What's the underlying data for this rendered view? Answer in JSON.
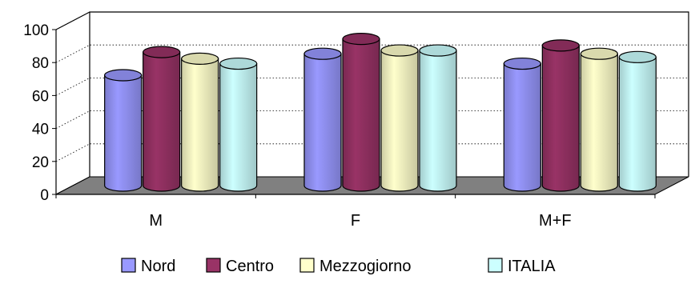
{
  "chart_data": {
    "type": "bar",
    "title": "",
    "xlabel": "",
    "ylabel": "",
    "categories": [
      "M",
      "F",
      "M+F"
    ],
    "series": [
      {
        "name": "Nord",
        "values": [
          67,
          80,
          74
        ]
      },
      {
        "name": "Centro",
        "values": [
          81,
          89,
          85
        ]
      },
      {
        "name": "Mezzogiorno",
        "values": [
          77,
          82,
          80
        ]
      },
      {
        "name": "ITALIA",
        "values": [
          74,
          82,
          78
        ]
      }
    ],
    "ylim": [
      0,
      100
    ],
    "yticks": [
      0,
      20,
      40,
      60,
      80,
      100
    ],
    "grid": true,
    "legend_position": "bottom",
    "style": "3d-cylinder",
    "colors": {
      "Nord": "#9999ff",
      "Centro": "#993366",
      "Mezzogiorno": "#ffffcc",
      "ITALIA": "#ccffff",
      "floor": "#808080"
    }
  }
}
